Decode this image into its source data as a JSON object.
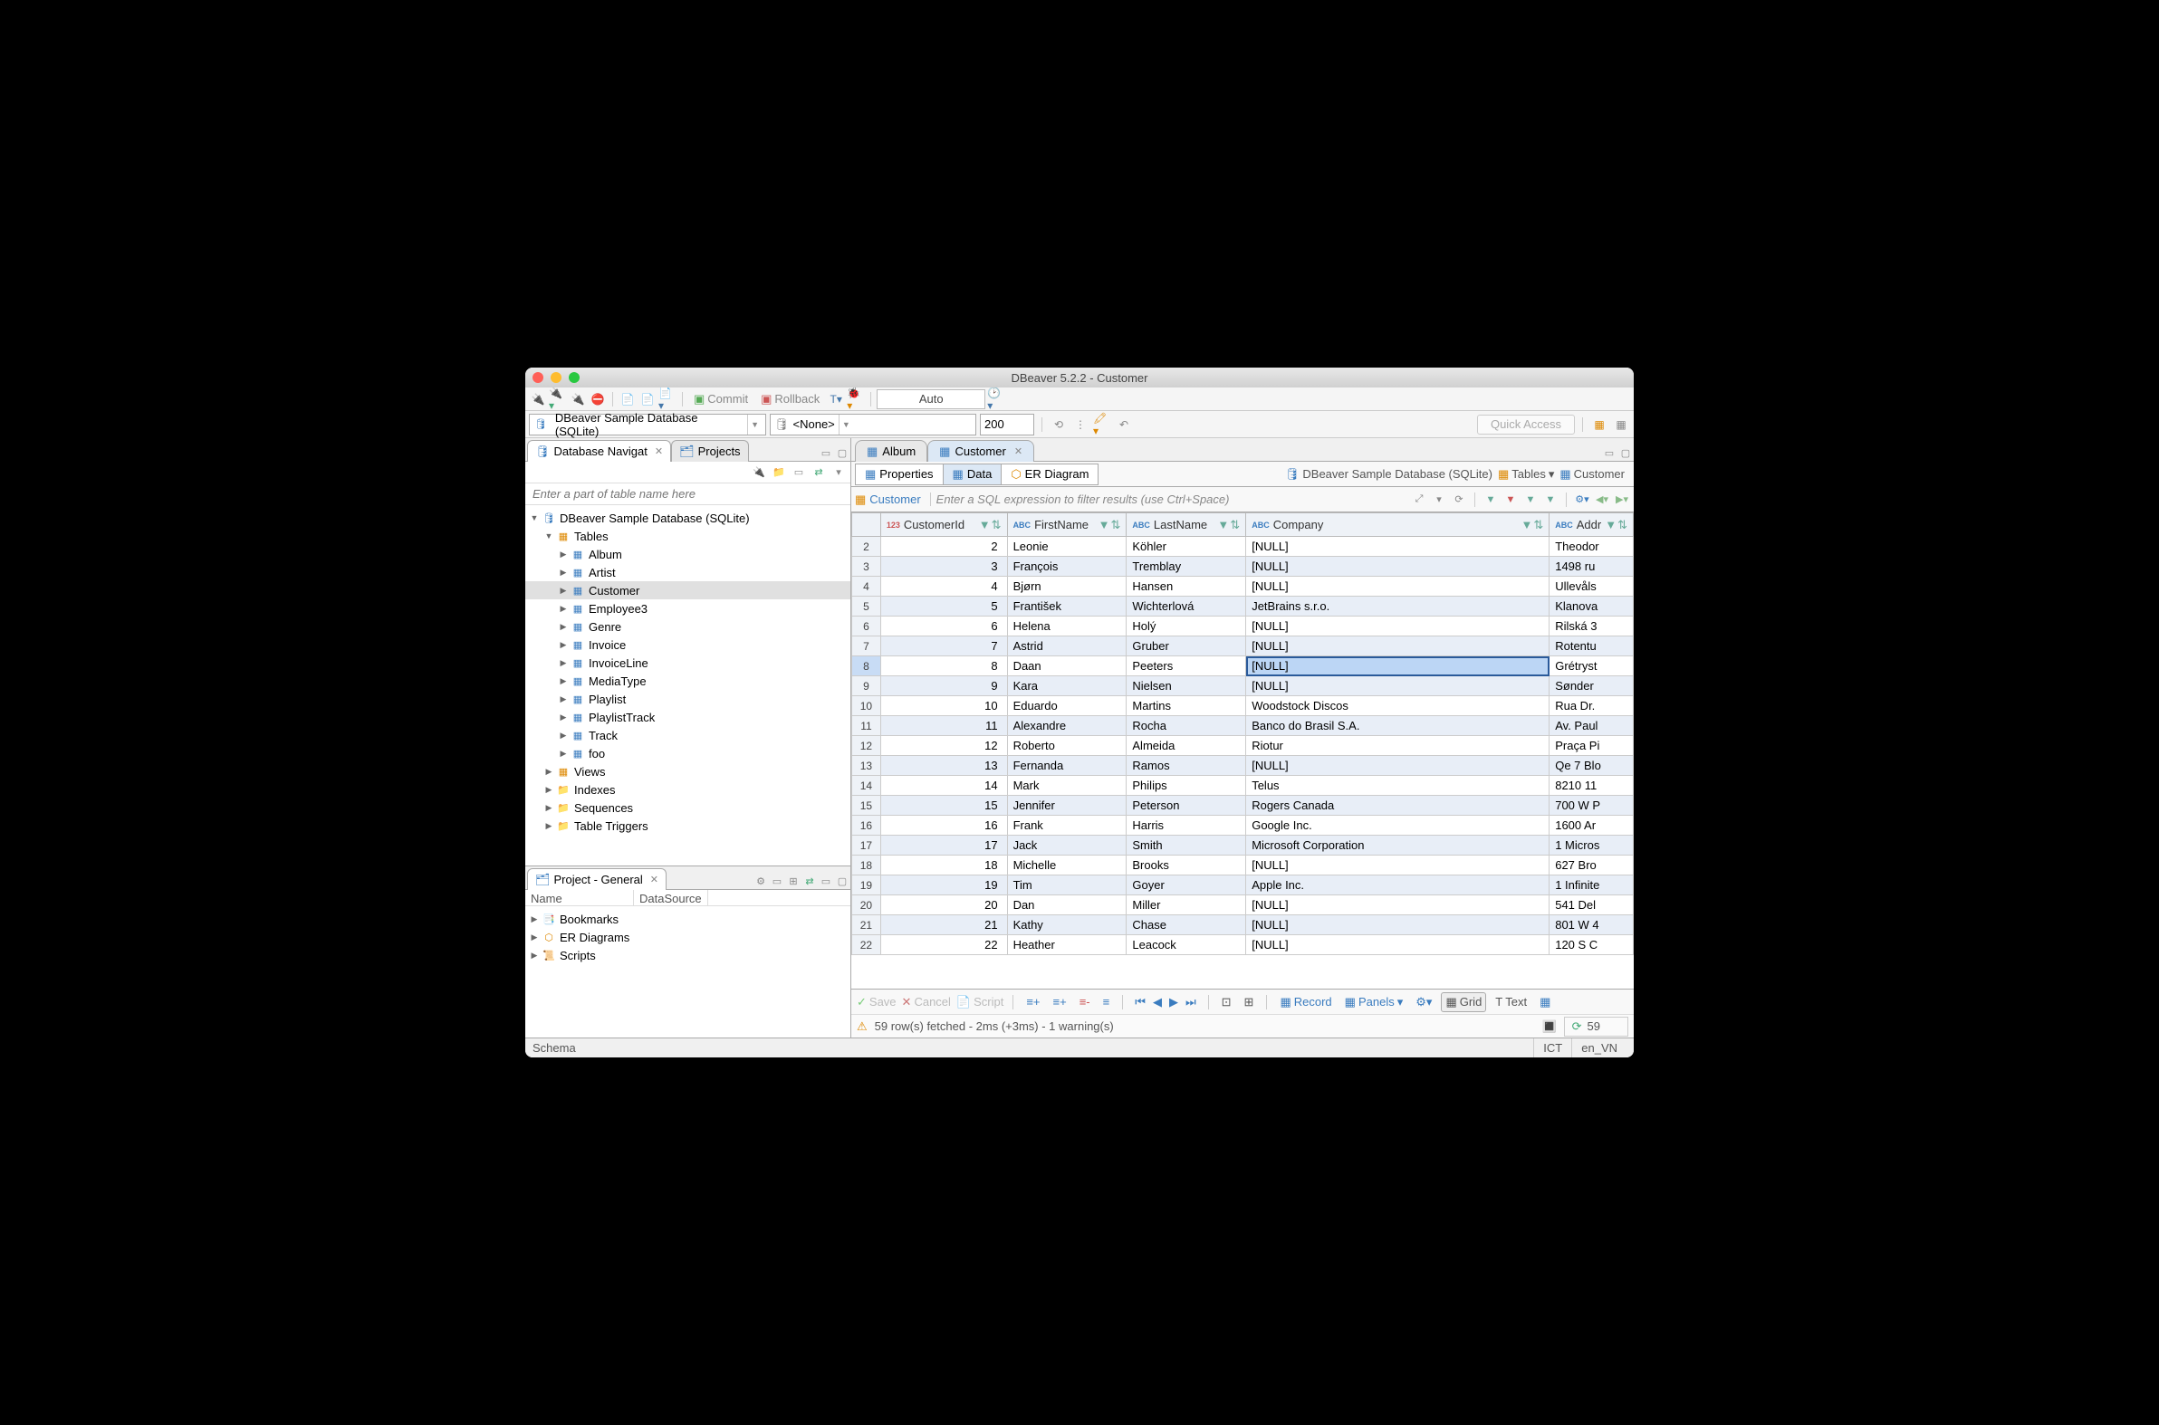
{
  "window": {
    "title": "DBeaver 5.2.2 - Customer"
  },
  "toolbar1": {
    "commit": "Commit",
    "rollback": "Rollback",
    "auto": "Auto"
  },
  "toolbar2": {
    "datasource": "DBeaver Sample Database (SQLite)",
    "schema": "<None>",
    "limit": "200",
    "quickAccess": "Quick Access"
  },
  "navigator": {
    "tabs": {
      "database": "Database Navigat",
      "projects": "Projects"
    },
    "filterPlaceholder": "Enter a part of table name here",
    "root": "DBeaver Sample Database (SQLite)",
    "tablesFolder": "Tables",
    "tables": [
      "Album",
      "Artist",
      "Customer",
      "Employee3",
      "Genre",
      "Invoice",
      "InvoiceLine",
      "MediaType",
      "Playlist",
      "PlaylistTrack",
      "Track",
      "foo"
    ],
    "folders": [
      "Views",
      "Indexes",
      "Sequences",
      "Table Triggers"
    ]
  },
  "project": {
    "title": "Project - General",
    "colName": "Name",
    "colDS": "DataSource",
    "items": [
      "Bookmarks",
      "ER Diagrams",
      "Scripts"
    ]
  },
  "editor": {
    "tabs": {
      "album": "Album",
      "customer": "Customer"
    },
    "subtabs": {
      "properties": "Properties",
      "data": "Data",
      "er": "ER Diagram"
    },
    "breadcrumb": {
      "db": "DBeaver Sample Database (SQLite)",
      "tables": "Tables",
      "table": "Customer"
    },
    "filterLabel": "Customer",
    "filterHint": "Enter a SQL expression to filter results (use Ctrl+Space)"
  },
  "columns": [
    "CustomerId",
    "FirstName",
    "LastName",
    "Company",
    "Addr"
  ],
  "colTypes": [
    "123",
    "ABC",
    "ABC",
    "ABC",
    "ABC"
  ],
  "rows": [
    {
      "n": 2,
      "id": 2,
      "fn": "Leonie",
      "ln": "Köhler",
      "co": "[NULL]",
      "ad": "Theodor"
    },
    {
      "n": 3,
      "id": 3,
      "fn": "François",
      "ln": "Tremblay",
      "co": "[NULL]",
      "ad": "1498 ru"
    },
    {
      "n": 4,
      "id": 4,
      "fn": "Bjørn",
      "ln": "Hansen",
      "co": "[NULL]",
      "ad": "Ullevåls"
    },
    {
      "n": 5,
      "id": 5,
      "fn": "František",
      "ln": "Wichterlová",
      "co": "JetBrains s.r.o.",
      "ad": "Klanova"
    },
    {
      "n": 6,
      "id": 6,
      "fn": "Helena",
      "ln": "Holý",
      "co": "[NULL]",
      "ad": "Rilská 3"
    },
    {
      "n": 7,
      "id": 7,
      "fn": "Astrid",
      "ln": "Gruber",
      "co": "[NULL]",
      "ad": "Rotentu"
    },
    {
      "n": 8,
      "id": 8,
      "fn": "Daan",
      "ln": "Peeters",
      "co": "[NULL]",
      "ad": "Grétryst",
      "sel": true
    },
    {
      "n": 9,
      "id": 9,
      "fn": "Kara",
      "ln": "Nielsen",
      "co": "[NULL]",
      "ad": "Sønder"
    },
    {
      "n": 10,
      "id": 10,
      "fn": "Eduardo",
      "ln": "Martins",
      "co": "Woodstock Discos",
      "ad": "Rua Dr."
    },
    {
      "n": 11,
      "id": 11,
      "fn": "Alexandre",
      "ln": "Rocha",
      "co": "Banco do Brasil S.A.",
      "ad": "Av. Paul"
    },
    {
      "n": 12,
      "id": 12,
      "fn": "Roberto",
      "ln": "Almeida",
      "co": "Riotur",
      "ad": "Praça Pi"
    },
    {
      "n": 13,
      "id": 13,
      "fn": "Fernanda",
      "ln": "Ramos",
      "co": "[NULL]",
      "ad": "Qe 7 Blo"
    },
    {
      "n": 14,
      "id": 14,
      "fn": "Mark",
      "ln": "Philips",
      "co": "Telus",
      "ad": "8210 11"
    },
    {
      "n": 15,
      "id": 15,
      "fn": "Jennifer",
      "ln": "Peterson",
      "co": "Rogers Canada",
      "ad": "700 W P"
    },
    {
      "n": 16,
      "id": 16,
      "fn": "Frank",
      "ln": "Harris",
      "co": "Google Inc.",
      "ad": "1600 Ar"
    },
    {
      "n": 17,
      "id": 17,
      "fn": "Jack",
      "ln": "Smith",
      "co": "Microsoft Corporation",
      "ad": "1 Micros"
    },
    {
      "n": 18,
      "id": 18,
      "fn": "Michelle",
      "ln": "Brooks",
      "co": "[NULL]",
      "ad": "627 Bro"
    },
    {
      "n": 19,
      "id": 19,
      "fn": "Tim",
      "ln": "Goyer",
      "co": "Apple Inc.",
      "ad": "1 Infinite"
    },
    {
      "n": 20,
      "id": 20,
      "fn": "Dan",
      "ln": "Miller",
      "co": "[NULL]",
      "ad": "541 Del"
    },
    {
      "n": 21,
      "id": 21,
      "fn": "Kathy",
      "ln": "Chase",
      "co": "[NULL]",
      "ad": "801 W 4"
    },
    {
      "n": 22,
      "id": 22,
      "fn": "Heather",
      "ln": "Leacock",
      "co": "[NULL]",
      "ad": "120 S C"
    }
  ],
  "bottom": {
    "save": "Save",
    "cancel": "Cancel",
    "script": "Script",
    "record": "Record",
    "panels": "Panels",
    "grid": "Grid",
    "text": "Text",
    "status": "59 row(s) fetched - 2ms (+3ms) - 1 warning(s)",
    "count": "59"
  },
  "status": {
    "schema": "Schema",
    "tz": "ICT",
    "locale": "en_VN"
  }
}
